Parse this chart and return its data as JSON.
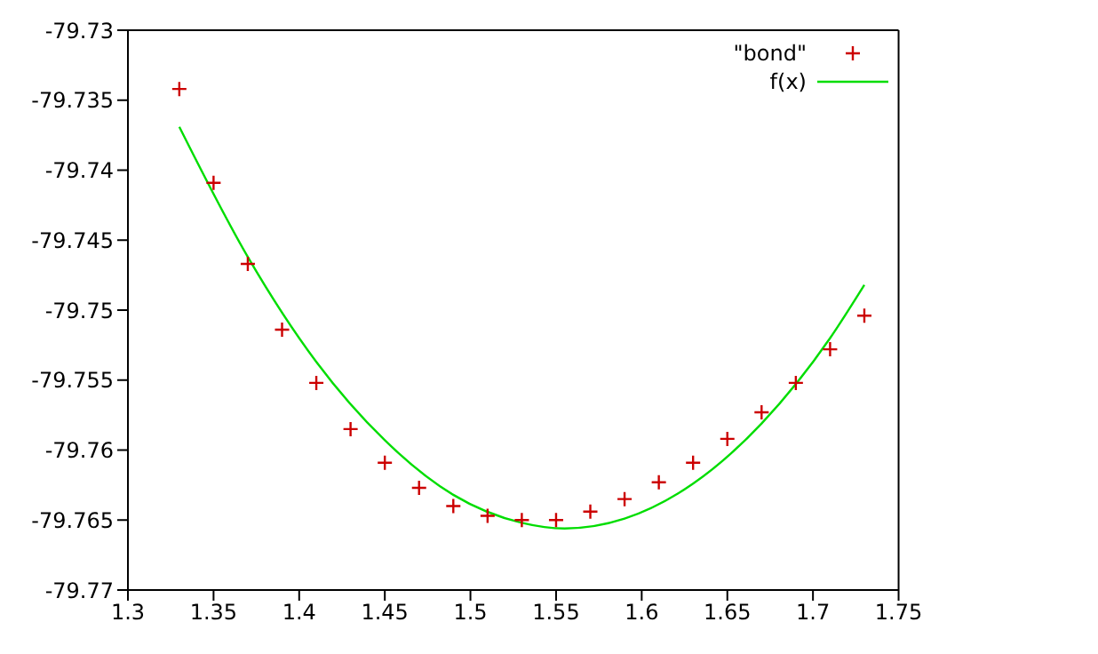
{
  "chart_data": {
    "type": "scatter",
    "xlim": [
      1.3,
      1.75
    ],
    "xticks": [
      1.3,
      1.35,
      1.4,
      1.45,
      1.5,
      1.55,
      1.6,
      1.65,
      1.7,
      1.75
    ],
    "ylim": [
      -79.77,
      -79.73
    ],
    "yticks": [
      -79.77,
      -79.765,
      -79.76,
      -79.755,
      -79.75,
      -79.745,
      -79.74,
      -79.735,
      -79.73
    ],
    "grid": false,
    "legend": "top right",
    "series": [
      {
        "name": "\"bond\"",
        "marker": "cross",
        "color": "#cc0000",
        "x": [
          1.33,
          1.35,
          1.37,
          1.39,
          1.41,
          1.43,
          1.45,
          1.47,
          1.49,
          1.51,
          1.53,
          1.55,
          1.57,
          1.59,
          1.61,
          1.63,
          1.65,
          1.67,
          1.69,
          1.71,
          1.73
        ],
        "values": [
          -79.7342,
          -79.7409,
          -79.7467,
          -79.7514,
          -79.7552,
          -79.7585,
          -79.7609,
          -79.7627,
          -79.764,
          -79.7647,
          -79.765,
          -79.765,
          -79.7644,
          -79.7635,
          -79.7623,
          -79.7609,
          -79.7592,
          -79.7573,
          -79.7552,
          -79.7528,
          -79.7504
        ]
      },
      {
        "name": "f(x)",
        "type": "line",
        "marker": "none",
        "line_style": "solid",
        "color": "#00dd00",
        "x": [
          1.33,
          1.37,
          1.41,
          1.45,
          1.49,
          1.53,
          1.555,
          1.59,
          1.63,
          1.67,
          1.71,
          1.73
        ],
        "values": [
          -79.7369,
          -79.7462,
          -79.7537,
          -79.7593,
          -79.7632,
          -79.7652,
          -79.7656,
          -79.7649,
          -79.7624,
          -79.7581,
          -79.752,
          -79.7482
        ]
      }
    ]
  }
}
